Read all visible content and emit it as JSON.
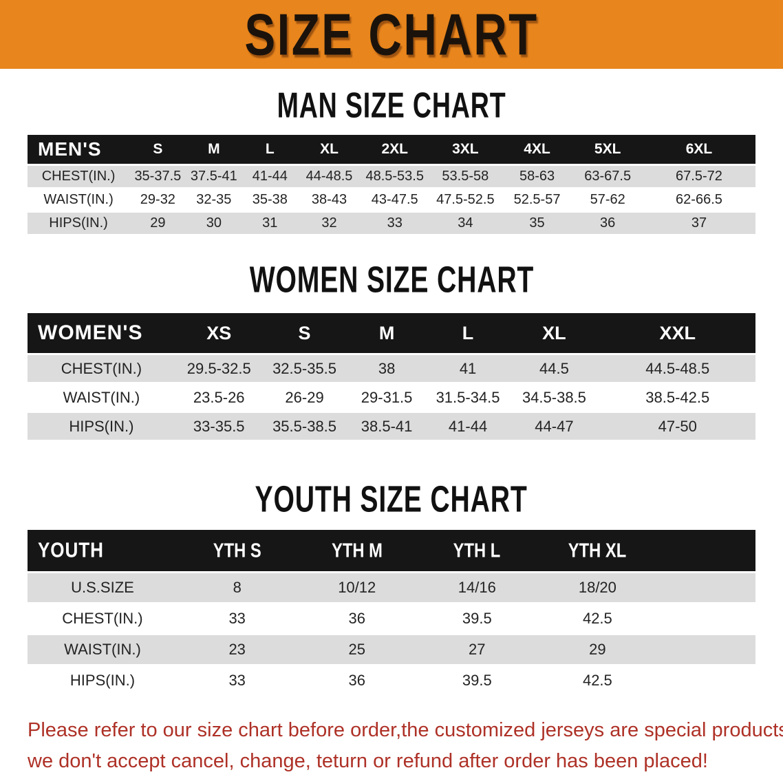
{
  "banner": {
    "title": "SIZE CHART"
  },
  "colors": {
    "banner_bg": "#E8851D",
    "banner_text": "#1B130B",
    "header_bar": "#161616",
    "header_text": "#FFFFFF",
    "stripe": "#DCDCDC",
    "cell_text": "#232323",
    "footer_text": "#AE3127"
  },
  "sections": [
    {
      "heading": "MAN SIZE CHART",
      "table": {
        "label": "MEN'S",
        "columns": [
          "S",
          "M",
          "L",
          "XL",
          "2XL",
          "3XL",
          "4XL",
          "5XL",
          "6XL"
        ],
        "rows": [
          {
            "label": "CHEST(IN.)",
            "values": [
              "35-37.5",
              "37.5-41",
              "41-44",
              "44-48.5",
              "48.5-53.5",
              "53.5-58",
              "58-63",
              "63-67.5",
              "67.5-72"
            ]
          },
          {
            "label": "WAIST(IN.)",
            "values": [
              "29-32",
              "32-35",
              "35-38",
              "38-43",
              "43-47.5",
              "47.5-52.5",
              "52.5-57",
              "57-62",
              "62-66.5"
            ]
          },
          {
            "label": "HIPS(IN.)",
            "values": [
              "29",
              "30",
              "31",
              "32",
              "33",
              "34",
              "35",
              "36",
              "37"
            ]
          }
        ]
      }
    },
    {
      "heading": "WOMEN SIZE CHART",
      "table": {
        "label": "WOMEN'S",
        "columns": [
          "XS",
          "S",
          "M",
          "L",
          "XL",
          "XXL"
        ],
        "rows": [
          {
            "label": "CHEST(IN.)",
            "values": [
              "29.5-32.5",
              "32.5-35.5",
              "38",
              "41",
              "44.5",
              "44.5-48.5"
            ]
          },
          {
            "label": "WAIST(IN.)",
            "values": [
              "23.5-26",
              "26-29",
              "29-31.5",
              "31.5-34.5",
              "34.5-38.5",
              "38.5-42.5"
            ]
          },
          {
            "label": "HIPS(IN.)",
            "values": [
              "33-35.5",
              "35.5-38.5",
              "38.5-41",
              "41-44",
              "44-47",
              "47-50"
            ]
          }
        ]
      }
    },
    {
      "heading": "YOUTH SIZE CHART",
      "table": {
        "label": "YOUTH",
        "columns": [
          "YTH S",
          "YTH M",
          "YTH L",
          "YTH XL"
        ],
        "rows": [
          {
            "label": "U.S.SIZE",
            "values": [
              "8",
              "10/12",
              "14/16",
              "18/20"
            ]
          },
          {
            "label": "CHEST(IN.)",
            "values": [
              "33",
              "36",
              "39.5",
              "42.5"
            ]
          },
          {
            "label": "WAIST(IN.)",
            "values": [
              "23",
              "25",
              "27",
              "29"
            ]
          },
          {
            "label": "HIPS(IN.)",
            "values": [
              "33",
              "36",
              "39.5",
              "42.5"
            ]
          }
        ]
      }
    }
  ],
  "footer_note": {
    "line1": "Please refer to our size chart before order,the customized jerseys are special products,",
    "line2": "we don't accept cancel, change, teturn or refund after order has been placed!"
  }
}
